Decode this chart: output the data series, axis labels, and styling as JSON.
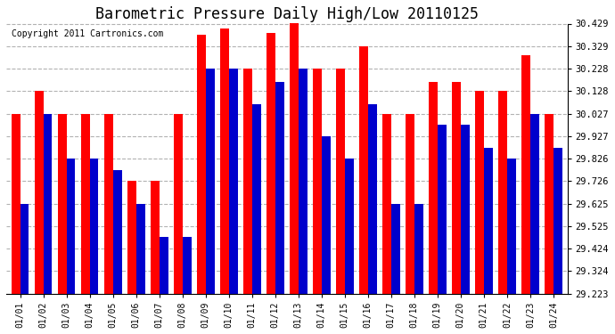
{
  "title": "Barometric Pressure Daily High/Low 20110125",
  "copyright": "Copyright 2011 Cartronics.com",
  "dates": [
    "01/01",
    "01/02",
    "01/03",
    "01/04",
    "01/05",
    "01/06",
    "01/07",
    "01/08",
    "01/09",
    "01/10",
    "01/11",
    "01/12",
    "01/13",
    "01/14",
    "01/15",
    "01/16",
    "01/17",
    "01/18",
    "01/19",
    "01/20",
    "01/21",
    "01/22",
    "01/23",
    "01/24"
  ],
  "highs": [
    30.027,
    30.128,
    30.027,
    30.027,
    30.027,
    29.726,
    29.726,
    30.027,
    30.379,
    30.409,
    30.228,
    30.389,
    30.429,
    30.228,
    30.228,
    30.329,
    30.027,
    30.027,
    30.168,
    30.168,
    30.128,
    30.128,
    30.289,
    30.027
  ],
  "lows": [
    29.625,
    30.027,
    29.826,
    29.826,
    29.776,
    29.625,
    29.476,
    29.476,
    30.228,
    30.228,
    30.068,
    30.168,
    30.228,
    29.927,
    29.826,
    30.068,
    29.625,
    29.625,
    29.977,
    29.977,
    29.876,
    29.826,
    30.027,
    29.876
  ],
  "high_color": "#ff0000",
  "low_color": "#0000cc",
  "bg_color": "#ffffff",
  "grid_color": "#aaaaaa",
  "ymin": 29.223,
  "ymax": 30.429,
  "yticks": [
    29.223,
    29.324,
    29.424,
    29.525,
    29.625,
    29.726,
    29.826,
    29.927,
    30.027,
    30.128,
    30.228,
    30.329,
    30.429
  ],
  "ytick_labels": [
    "29.223",
    "29.324",
    "29.424",
    "29.525",
    "29.625",
    "29.726",
    "29.826",
    "29.927",
    "30.027",
    "30.128",
    "30.228",
    "30.329",
    "30.429"
  ],
  "title_fontsize": 12,
  "copyright_fontsize": 7
}
